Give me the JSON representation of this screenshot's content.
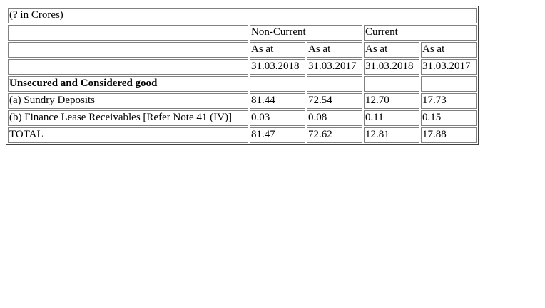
{
  "caption": "(? in Crores)",
  "group_headers": {
    "non_current": "Non-Current",
    "current": "Current"
  },
  "as_at_row": [
    "As at",
    "As at",
    "As at",
    "As at"
  ],
  "date_row": [
    "31.03.2018",
    "31.03.2017",
    "31.03.2018",
    "31.03.2017"
  ],
  "section_title": "Unsecured and Considered good",
  "rows": [
    {
      "label": "(a) Sundry Deposits",
      "values": [
        "81.44",
        "72.54",
        "12.70",
        "17.73"
      ]
    },
    {
      "label": "(b) Finance Lease Receivables [Refer Note 41 (IV)]",
      "values": [
        "0.03",
        "0.08",
        "0.11",
        "0.15"
      ]
    },
    {
      "label": "TOTAL",
      "values": [
        "81.47",
        "72.62",
        "12.81",
        "17.88"
      ]
    }
  ]
}
